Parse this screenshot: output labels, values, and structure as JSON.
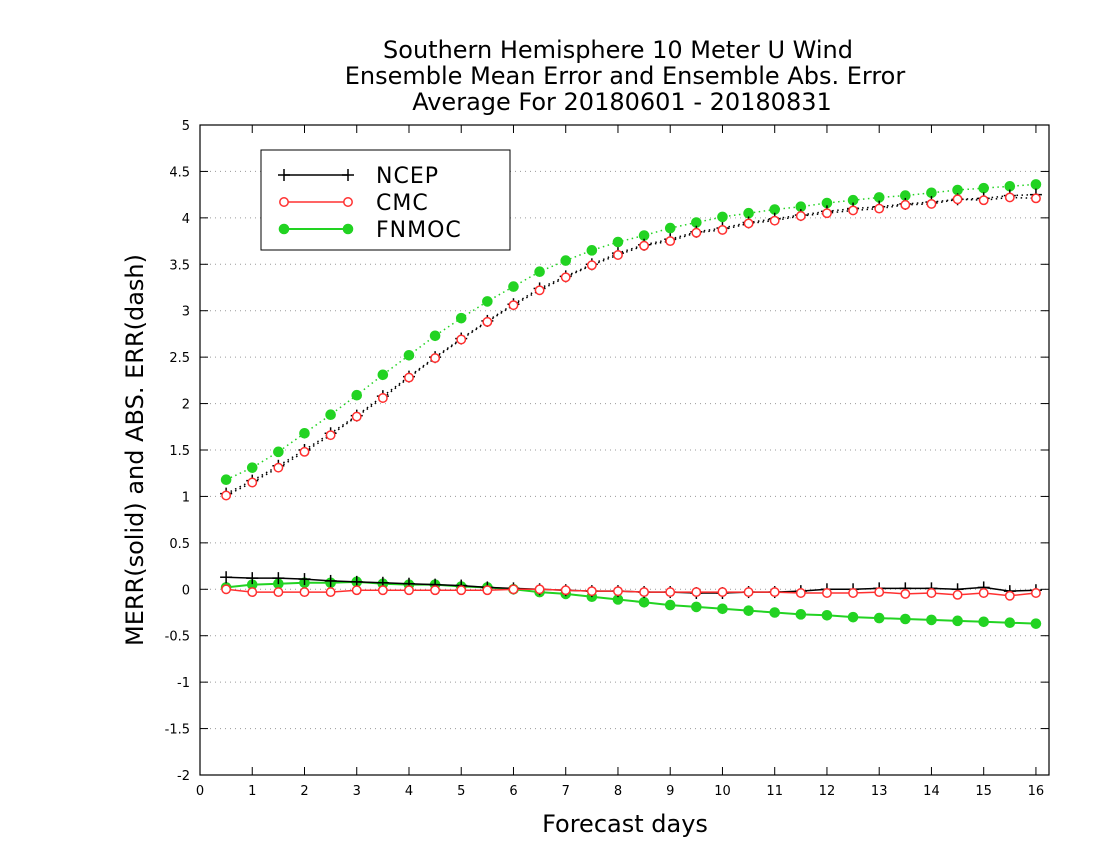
{
  "chart_data": {
    "type": "line",
    "title": [
      "Southern Hemisphere 10 Meter U Wind",
      "Ensemble Mean Error and Ensemble Abs. Error",
      "Average For 20180601 - 20180831"
    ],
    "xlabel": "Forecast days",
    "ylabel": "MERR(solid) and ABS. ERR(dash)",
    "xlim": [
      0,
      16.25
    ],
    "ylim": [
      -2,
      5
    ],
    "xticks": [
      0,
      1,
      2,
      3,
      4,
      5,
      6,
      7,
      8,
      9,
      10,
      11,
      12,
      13,
      14,
      15,
      16
    ],
    "yticks": [
      -2,
      -1.5,
      -1,
      -0.5,
      0,
      0.5,
      1,
      1.5,
      2,
      2.5,
      3,
      3.5,
      4,
      4.5,
      5
    ],
    "ytick_labels": [
      "-2",
      "-1.5",
      "-1",
      "-0.5",
      "0",
      "0.5",
      "1",
      "1.5",
      "2",
      "2.5",
      "3",
      "3.5",
      "4",
      "4.5",
      "5"
    ],
    "xtick_labels": [
      "0",
      "1",
      "2",
      "3",
      "4",
      "5",
      "6",
      "7",
      "8",
      "9",
      "10",
      "11",
      "12",
      "13",
      "14",
      "15",
      "16"
    ],
    "grid": "horizontal dotted",
    "legend_position": "top-left",
    "x": [
      0.5,
      1,
      1.5,
      2,
      2.5,
      3,
      3.5,
      4,
      4.5,
      5,
      5.5,
      6,
      6.5,
      7,
      7.5,
      8,
      8.5,
      9,
      9.5,
      10,
      10.5,
      11,
      11.5,
      12,
      12.5,
      13,
      13.5,
      14,
      14.5,
      15,
      15.5,
      16
    ],
    "series": [
      {
        "name": "NCEP",
        "color": "#000000",
        "marker": "plus",
        "merr": [
          0.13,
          0.12,
          0.12,
          0.11,
          0.09,
          0.08,
          0.07,
          0.06,
          0.05,
          0.04,
          0.02,
          0.01,
          0.0,
          -0.01,
          -0.02,
          -0.02,
          -0.03,
          -0.03,
          -0.04,
          -0.04,
          -0.03,
          -0.03,
          -0.02,
          0.0,
          0.0,
          0.01,
          0.01,
          0.01,
          0.0,
          0.02,
          -0.02,
          -0.01
        ],
        "abs_err": [
          1.03,
          1.17,
          1.33,
          1.5,
          1.68,
          1.87,
          2.08,
          2.29,
          2.5,
          2.7,
          2.89,
          3.07,
          3.24,
          3.37,
          3.5,
          3.62,
          3.71,
          3.77,
          3.85,
          3.89,
          3.95,
          3.99,
          4.03,
          4.07,
          4.1,
          4.12,
          4.15,
          4.17,
          4.2,
          4.21,
          4.24,
          4.25
        ]
      },
      {
        "name": "CMC",
        "color": "#ff3030",
        "marker": "open-circle",
        "merr": [
          0.0,
          -0.03,
          -0.03,
          -0.03,
          -0.03,
          -0.01,
          -0.01,
          -0.01,
          -0.01,
          -0.01,
          -0.01,
          0.0,
          0.0,
          -0.01,
          -0.02,
          -0.02,
          -0.03,
          -0.03,
          -0.03,
          -0.03,
          -0.03,
          -0.03,
          -0.04,
          -0.04,
          -0.04,
          -0.03,
          -0.05,
          -0.04,
          -0.06,
          -0.04,
          -0.07,
          -0.04
        ],
        "abs_err": [
          1.01,
          1.15,
          1.31,
          1.48,
          1.66,
          1.86,
          2.06,
          2.28,
          2.49,
          2.69,
          2.88,
          3.06,
          3.22,
          3.36,
          3.49,
          3.6,
          3.7,
          3.75,
          3.84,
          3.87,
          3.94,
          3.97,
          4.02,
          4.05,
          4.08,
          4.1,
          4.14,
          4.15,
          4.2,
          4.19,
          4.22,
          4.21
        ]
      },
      {
        "name": "FNMOC",
        "color": "#22d322",
        "marker": "filled-circle",
        "merr": [
          0.02,
          0.05,
          0.06,
          0.07,
          0.07,
          0.08,
          0.06,
          0.05,
          0.05,
          0.03,
          0.02,
          0.0,
          -0.03,
          -0.05,
          -0.08,
          -0.11,
          -0.14,
          -0.17,
          -0.19,
          -0.21,
          -0.23,
          -0.25,
          -0.27,
          -0.28,
          -0.3,
          -0.31,
          -0.32,
          -0.33,
          -0.34,
          -0.35,
          -0.36,
          -0.37
        ],
        "abs_err": [
          1.18,
          1.31,
          1.48,
          1.68,
          1.88,
          2.09,
          2.31,
          2.52,
          2.73,
          2.92,
          3.1,
          3.26,
          3.42,
          3.54,
          3.65,
          3.74,
          3.81,
          3.89,
          3.95,
          4.01,
          4.05,
          4.09,
          4.12,
          4.16,
          4.19,
          4.22,
          4.24,
          4.27,
          4.3,
          4.32,
          4.34,
          4.36
        ]
      }
    ]
  }
}
